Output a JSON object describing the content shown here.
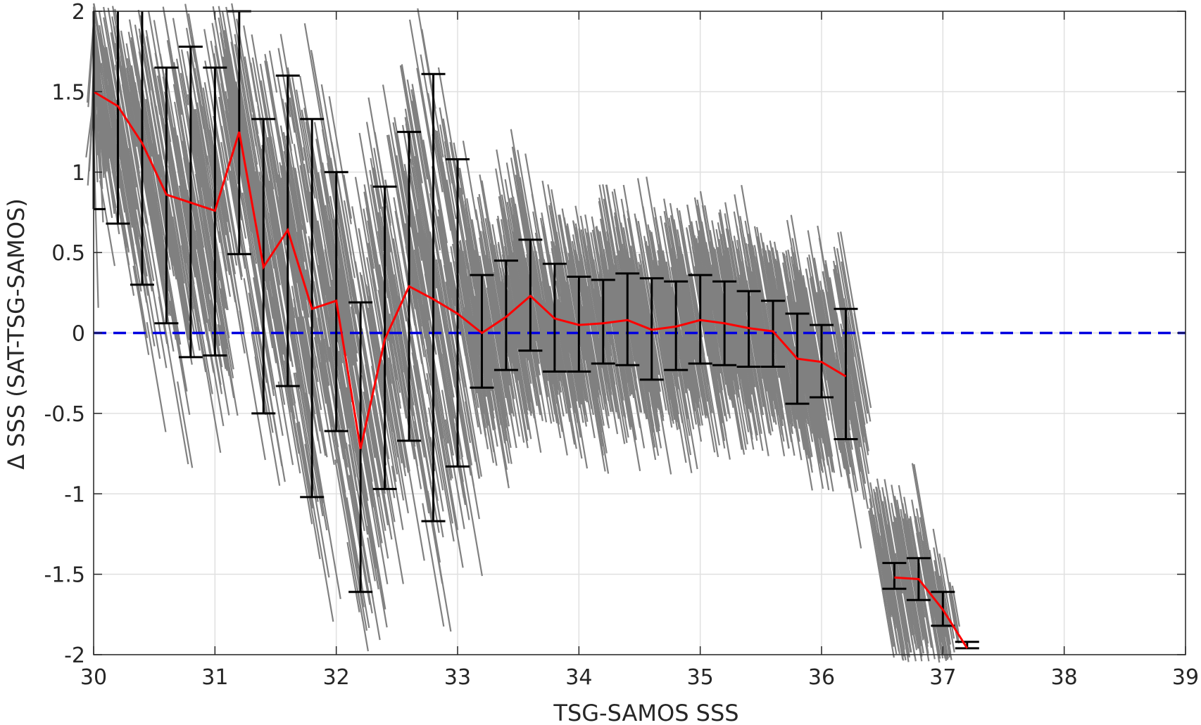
{
  "chart_data": {
    "type": "scatter",
    "title": "",
    "xlabel": "TSG-SAMOS SSS",
    "ylabel": "Δ SSS (SAT-TSG-SAMOS)",
    "xlim": [
      30,
      39
    ],
    "ylim": [
      -2,
      2
    ],
    "xticks": [
      30,
      31,
      32,
      33,
      34,
      35,
      36,
      37,
      38,
      39
    ],
    "yticks": [
      -2,
      -1.5,
      -1,
      -0.5,
      0,
      0.5,
      1,
      1.5,
      2
    ],
    "xtick_labels": [
      "30",
      "31",
      "32",
      "33",
      "34",
      "35",
      "36",
      "37",
      "38",
      "39"
    ],
    "ytick_labels": [
      "-2",
      "-1.5",
      "-1",
      "-0.5",
      "0",
      "0.5",
      "1",
      "1.5",
      "2"
    ],
    "grid": true,
    "legend": "none",
    "colors": {
      "scatter": "#808080",
      "mean_line": "#ff0000",
      "error_bars": "#000000",
      "zero_line": "#0000e0",
      "grid": "#e0e0e0",
      "axes": "#262626"
    },
    "series": [
      {
        "type": "errorbar",
        "x": [
          30.0,
          30.2,
          30.4,
          30.6,
          30.8,
          31.0,
          31.2,
          31.4,
          31.6,
          31.8,
          32.0,
          32.2,
          32.4,
          32.6,
          32.8,
          33.0,
          33.2,
          33.4,
          33.6,
          33.8,
          34.0,
          34.2,
          34.4,
          34.6,
          34.8,
          35.0,
          35.2,
          35.4,
          35.6,
          35.8,
          36.0,
          36.2,
          36.6,
          36.8,
          37.0,
          37.2
        ],
        "mean": [
          1.5,
          1.41,
          1.18,
          0.86,
          0.81,
          0.76,
          1.25,
          0.41,
          0.64,
          0.15,
          0.2,
          -0.72,
          -0.04,
          0.29,
          0.21,
          0.12,
          0.0,
          0.1,
          0.23,
          0.09,
          0.05,
          0.06,
          0.08,
          0.02,
          0.04,
          0.08,
          0.06,
          0.03,
          0.01,
          -0.16,
          -0.18,
          -0.27,
          -1.52,
          -1.53,
          -1.72,
          -1.96
        ],
        "lower": [
          0.77,
          0.68,
          0.3,
          0.06,
          -0.15,
          -0.14,
          0.49,
          -0.5,
          -0.33,
          -1.02,
          -0.61,
          -1.61,
          -0.97,
          -0.67,
          -1.17,
          -0.83,
          -0.34,
          -0.23,
          -0.11,
          -0.24,
          -0.24,
          -0.19,
          -0.2,
          -0.29,
          -0.23,
          -0.19,
          -0.2,
          -0.21,
          -0.21,
          -0.44,
          -0.4,
          -0.66,
          -1.59,
          -1.66,
          -1.82,
          -1.96
        ],
        "upper": [
          2.05,
          2.05,
          2.05,
          1.65,
          1.78,
          1.65,
          2.0,
          1.33,
          1.6,
          1.33,
          1.0,
          0.19,
          0.91,
          1.25,
          1.61,
          1.08,
          0.36,
          0.45,
          0.58,
          0.43,
          0.35,
          0.33,
          0.37,
          0.34,
          0.32,
          0.36,
          0.32,
          0.26,
          0.2,
          0.12,
          0.05,
          0.15,
          -1.43,
          -1.4,
          -1.61,
          -1.92
        ]
      }
    ],
    "reference_line": {
      "y": 0,
      "style": "dashed"
    }
  }
}
